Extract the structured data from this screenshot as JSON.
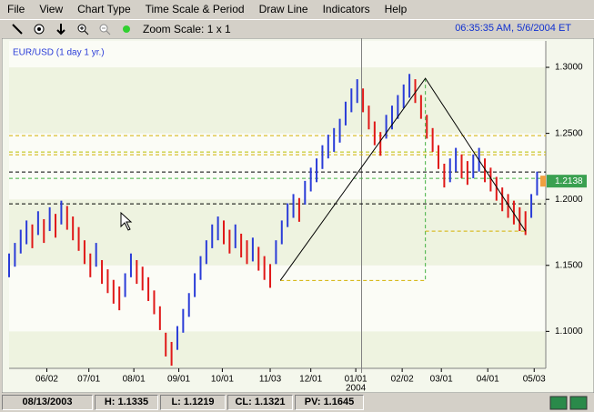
{
  "menu": [
    "File",
    "View",
    "Chart Type",
    "Time Scale & Period",
    "Draw Line",
    "Indicators",
    "Help"
  ],
  "toolbar": {
    "zoom": "Zoom Scale: 1 x 1",
    "datetime": "06:35:35 AM, 5/6/2004 ET"
  },
  "chart_data": {
    "type": "ohlc",
    "title": "EUR/USD (1 day  1 yr.)",
    "x": [
      0,
      4,
      8,
      12,
      16,
      20,
      24,
      28,
      32,
      36,
      40,
      44,
      48,
      52,
      56,
      60,
      64,
      68,
      72,
      76,
      80,
      84,
      88,
      92,
      96,
      100,
      104,
      108,
      112,
      116,
      120,
      124,
      128,
      132,
      136,
      140,
      144,
      148,
      152,
      156,
      160,
      164,
      168,
      172,
      176,
      180,
      184,
      188,
      192,
      196,
      200,
      204,
      208,
      212,
      216,
      220,
      224,
      228,
      232,
      236,
      240,
      244,
      248,
      252,
      256,
      260,
      264,
      268,
      272,
      276,
      280,
      284,
      288,
      292,
      296,
      300,
      304,
      308,
      312,
      316,
      320,
      324,
      328,
      332,
      336,
      340,
      344,
      348,
      352,
      356,
      360,
      364
    ],
    "high": [
      1.159,
      1.167,
      1.177,
      1.184,
      1.181,
      1.191,
      1.185,
      1.194,
      1.189,
      1.199,
      1.195,
      1.187,
      1.179,
      1.169,
      1.159,
      1.167,
      1.154,
      1.147,
      1.139,
      1.134,
      1.144,
      1.159,
      1.154,
      1.149,
      1.141,
      1.131,
      1.119,
      1.099,
      1.092,
      1.104,
      1.117,
      1.129,
      1.144,
      1.157,
      1.169,
      1.181,
      1.187,
      1.184,
      1.177,
      1.181,
      1.174,
      1.169,
      1.171,
      1.164,
      1.157,
      1.151,
      1.169,
      1.184,
      1.197,
      1.204,
      1.201,
      1.214,
      1.224,
      1.231,
      1.241,
      1.249,
      1.254,
      1.261,
      1.274,
      1.284,
      1.291,
      1.284,
      1.271,
      1.259,
      1.251,
      1.264,
      1.271,
      1.279,
      1.287,
      1.295,
      1.291,
      1.279,
      1.264,
      1.254,
      1.241,
      1.227,
      1.231,
      1.239,
      1.234,
      1.229,
      1.234,
      1.239,
      1.231,
      1.224,
      1.217,
      1.209,
      1.204,
      1.199,
      1.194,
      1.191,
      1.204,
      1.221
    ],
    "low": [
      1.141,
      1.149,
      1.159,
      1.166,
      1.163,
      1.173,
      1.167,
      1.176,
      1.171,
      1.181,
      1.177,
      1.169,
      1.161,
      1.151,
      1.141,
      1.149,
      1.136,
      1.129,
      1.121,
      1.116,
      1.126,
      1.141,
      1.136,
      1.131,
      1.123,
      1.113,
      1.101,
      1.081,
      1.074,
      1.086,
      1.099,
      1.111,
      1.126,
      1.139,
      1.151,
      1.163,
      1.169,
      1.166,
      1.159,
      1.163,
      1.156,
      1.151,
      1.153,
      1.146,
      1.139,
      1.133,
      1.151,
      1.166,
      1.179,
      1.186,
      1.183,
      1.196,
      1.206,
      1.213,
      1.223,
      1.231,
      1.236,
      1.243,
      1.256,
      1.266,
      1.273,
      1.266,
      1.253,
      1.241,
      1.233,
      1.246,
      1.253,
      1.261,
      1.269,
      1.277,
      1.273,
      1.261,
      1.246,
      1.236,
      1.223,
      1.209,
      1.213,
      1.221,
      1.216,
      1.211,
      1.216,
      1.221,
      1.213,
      1.206,
      1.199,
      1.191,
      1.186,
      1.181,
      1.176,
      1.173,
      1.186,
      1.203
    ],
    "up_color": "#2a3cd8",
    "down_color": "#e01818",
    "xlim": [
      0,
      370
    ],
    "xticks": [
      {
        "value": 26,
        "label": "06/02"
      },
      {
        "value": 55,
        "label": "07/01"
      },
      {
        "value": 86,
        "label": "08/01"
      },
      {
        "value": 117,
        "label": "09/01"
      },
      {
        "value": 147,
        "label": "10/01"
      },
      {
        "value": 180,
        "label": "11/03"
      },
      {
        "value": 208,
        "label": "12/01"
      },
      {
        "value": 239,
        "label": "01/01"
      },
      {
        "value": 271,
        "label": "02/02"
      },
      {
        "value": 298,
        "label": "03/01"
      },
      {
        "value": 330,
        "label": "04/01"
      },
      {
        "value": 362,
        "label": "05/03"
      }
    ],
    "year_label": "2004",
    "ylim": [
      1.072,
      1.32
    ],
    "yticks": [
      {
        "value": 1.1,
        "label": "1.1000"
      },
      {
        "value": 1.15,
        "label": "1.1500"
      },
      {
        "value": 1.2,
        "label": "1.2000"
      },
      {
        "value": 1.25,
        "label": "1.2500"
      },
      {
        "value": 1.3,
        "label": "1.3000"
      }
    ],
    "last": 1.2138,
    "cursor_x": 243,
    "levels": [
      {
        "value": 1.2483,
        "color": "#d4b000"
      },
      {
        "value": 1.2359,
        "color": "#b8c000"
      },
      {
        "value": 1.2338,
        "color": "#d4b000"
      },
      {
        "value": 1.2207,
        "color": "#000000"
      },
      {
        "value": 1.2159,
        "color": "#40b040"
      },
      {
        "value": 1.1966,
        "color": "#000000"
      }
    ],
    "trendline": {
      "x": [
        187,
        287,
        356
      ],
      "y": [
        1.1386,
        1.2917,
        1.1759
      ],
      "color": "#000000"
    }
  },
  "status": {
    "date": "08/13/2003",
    "high": "H: 1.1335",
    "low": "L: 1.1219",
    "close": "CL: 1.1321",
    "pv": "PV: 1.1645"
  }
}
